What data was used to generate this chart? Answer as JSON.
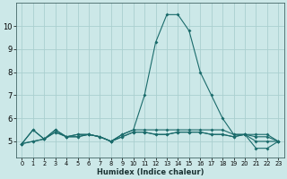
{
  "xlabel": "Humidex (Indice chaleur)",
  "ylabel": "",
  "background_color": "#cce8e8",
  "grid_color": "#aacfcf",
  "line_color": "#1a6b6b",
  "xlim": [
    -0.5,
    23.5
  ],
  "ylim": [
    4.3,
    11.0
  ],
  "yticks": [
    5,
    6,
    7,
    8,
    9,
    10
  ],
  "xticks": [
    0,
    1,
    2,
    3,
    4,
    5,
    6,
    7,
    8,
    9,
    10,
    11,
    12,
    13,
    14,
    15,
    16,
    17,
    18,
    19,
    20,
    21,
    22,
    23
  ],
  "series": [
    [
      4.9,
      5.5,
      5.1,
      5.5,
      5.2,
      5.3,
      5.3,
      5.2,
      5.0,
      5.3,
      5.5,
      7.0,
      9.3,
      10.5,
      10.5,
      9.8,
      8.0,
      7.0,
      6.0,
      5.3,
      5.3,
      4.7,
      4.7,
      5.0
    ],
    [
      4.9,
      5.5,
      5.1,
      5.5,
      5.2,
      5.3,
      5.3,
      5.2,
      5.0,
      5.3,
      5.5,
      5.5,
      5.5,
      5.5,
      5.5,
      5.5,
      5.5,
      5.5,
      5.5,
      5.3,
      5.3,
      5.3,
      5.3,
      5.0
    ],
    [
      4.9,
      5.0,
      5.1,
      5.4,
      5.2,
      5.2,
      5.3,
      5.2,
      5.0,
      5.2,
      5.4,
      5.4,
      5.3,
      5.3,
      5.4,
      5.4,
      5.4,
      5.3,
      5.3,
      5.2,
      5.3,
      5.2,
      5.2,
      5.0
    ],
    [
      4.9,
      5.0,
      5.1,
      5.4,
      5.2,
      5.2,
      5.3,
      5.2,
      5.0,
      5.2,
      5.4,
      5.4,
      5.3,
      5.3,
      5.4,
      5.4,
      5.4,
      5.3,
      5.3,
      5.2,
      5.3,
      5.0,
      5.0,
      5.0
    ]
  ],
  "xlabel_fontsize": 6.0,
  "ylabel_fontsize": 6.0,
  "xtick_fontsize": 4.8,
  "ytick_fontsize": 6.0,
  "linewidth": 0.8,
  "markersize": 2.0
}
